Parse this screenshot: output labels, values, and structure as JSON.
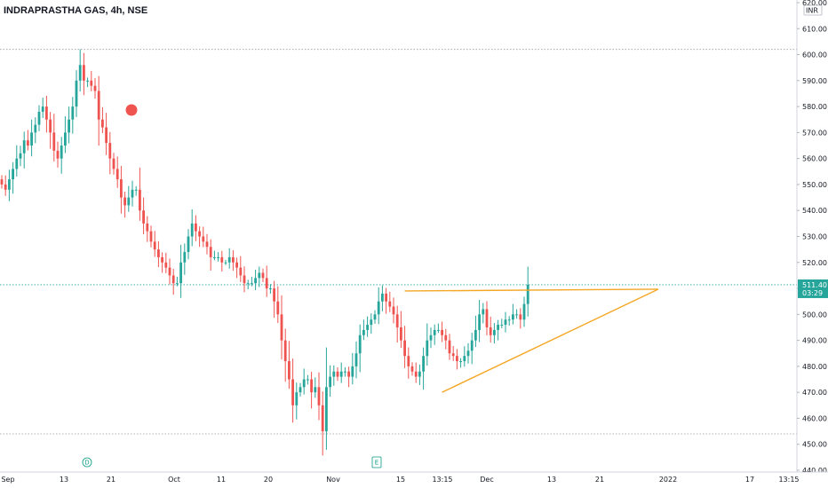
{
  "header": {
    "title": "INDRAPRASTHA GAS, 4h, NSE"
  },
  "currency": "INR",
  "price_badge": {
    "price": "511.40",
    "countdown": "03:29"
  },
  "events": [
    {
      "label": "D",
      "x_label": "13"
    },
    {
      "label": "E",
      "x_label": "Nov"
    }
  ],
  "colors": {
    "up": "#26a69a",
    "down": "#ef5350",
    "trend": "#f5a623",
    "marker": "#f0544f",
    "badge": "#26a69a"
  },
  "chart_data": {
    "type": "candlestick",
    "title": "INDRAPRASTHA GAS, 4h, NSE",
    "ylim": [
      440,
      620
    ],
    "y_ticks": [
      440,
      450,
      460,
      470,
      480,
      490,
      500,
      510,
      520,
      530,
      540,
      550,
      560,
      570,
      580,
      590,
      600,
      610,
      620
    ],
    "x_ticks": [
      "Sep",
      "13",
      "21",
      "Oct",
      "11",
      "20",
      "Nov",
      "15",
      "13:15",
      "Dec",
      "13",
      "21",
      "2022",
      "17",
      "13:15"
    ],
    "reference_lines": [
      602,
      511.4,
      454
    ],
    "last_price": 511.4,
    "close_series": [
      550,
      548,
      552,
      556,
      560,
      562,
      567,
      565,
      570,
      573,
      578,
      580,
      575,
      570,
      563,
      560,
      565,
      570,
      575,
      580,
      590,
      596,
      590,
      590,
      588,
      586,
      575,
      572,
      566,
      560,
      556,
      552,
      545,
      542,
      545,
      548,
      548,
      540,
      535,
      532,
      528,
      525,
      522,
      520,
      518,
      515,
      512,
      512,
      520,
      524,
      530,
      535,
      532,
      530,
      528,
      526,
      522,
      522,
      522,
      520,
      520,
      522,
      520,
      518,
      515,
      512,
      512,
      512,
      514,
      516,
      514,
      510,
      510,
      505,
      500,
      490,
      482,
      475,
      465,
      470,
      472,
      475,
      475,
      470,
      472,
      465,
      455,
      472,
      476,
      478,
      476,
      478,
      478,
      476,
      480,
      485,
      492,
      494,
      496,
      498,
      500,
      505,
      508,
      505,
      503,
      500,
      495,
      490,
      484,
      480,
      478,
      476,
      478,
      484,
      490,
      492,
      494,
      494,
      492,
      490,
      485,
      484,
      482,
      482,
      484,
      486,
      490,
      494,
      500,
      502,
      495,
      492,
      494,
      496,
      496,
      498,
      498,
      500,
      500,
      498,
      504,
      511.4
    ],
    "trend_lines": [
      {
        "name": "resistance",
        "from": {
          "i": 108,
          "y": 509
        },
        "to": {
          "i": 164,
          "y": 509
        }
      },
      {
        "name": "support",
        "from": {
          "i": 118,
          "y": 470
        },
        "to": {
          "i": 164,
          "y": 509
        }
      }
    ]
  }
}
